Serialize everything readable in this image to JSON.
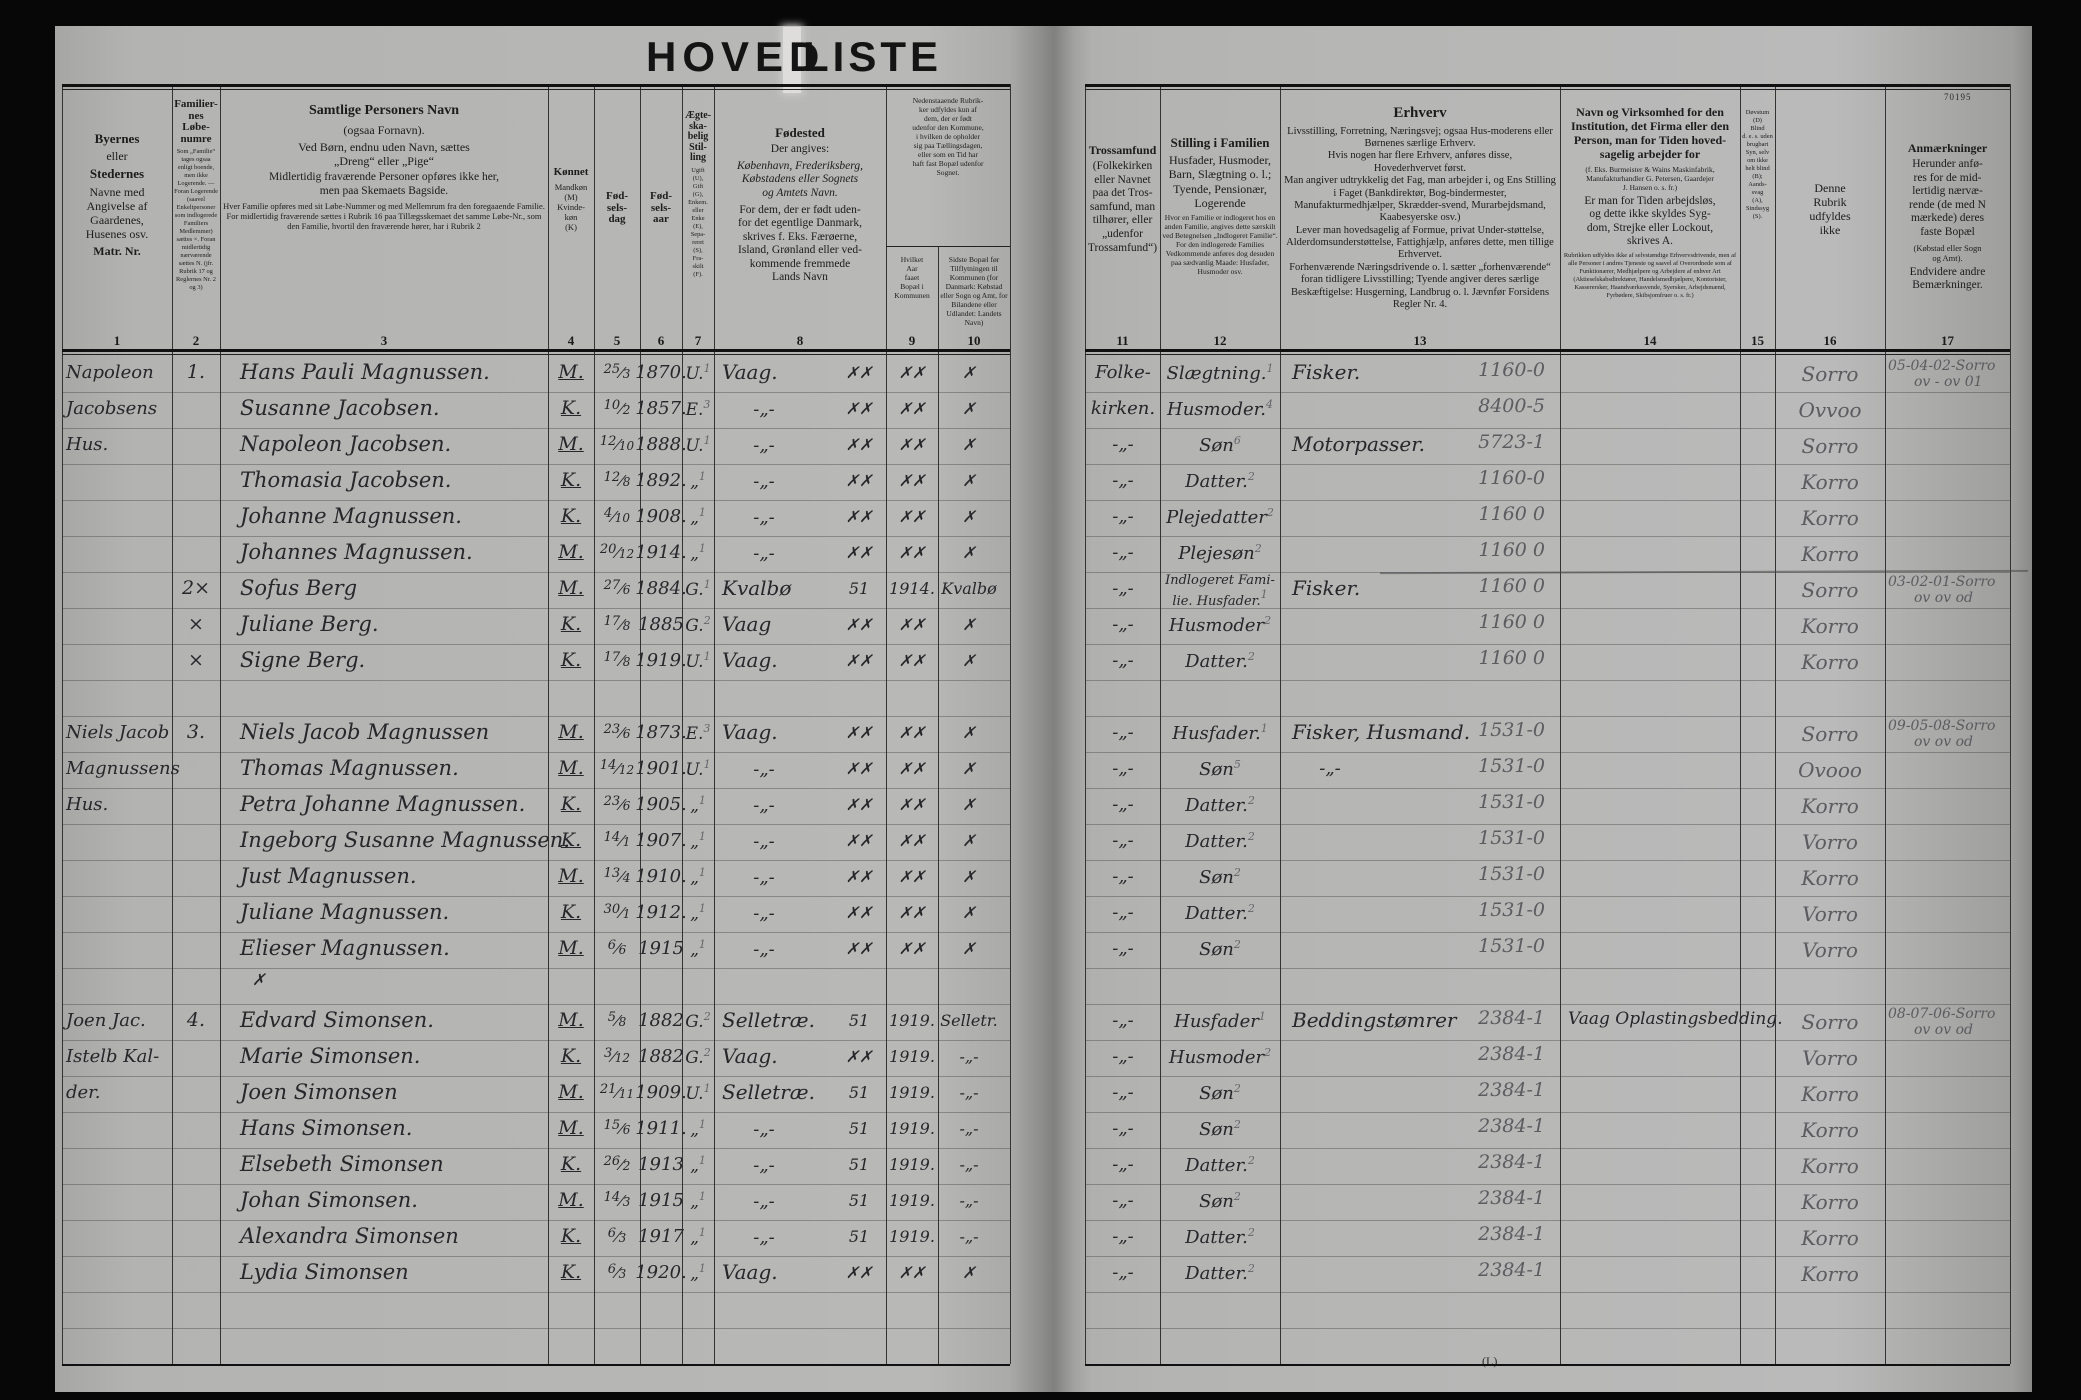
{
  "title": {
    "word1": "HOVED",
    "word2": "LISTE"
  },
  "meta": {
    "form_no": "70195",
    "bottom_mark": "(L)"
  },
  "palette": {
    "paper": "#b5b5b3",
    "ink": "#26262b",
    "pencil": "#5b5b60",
    "print": "#1c1c1c"
  },
  "columns": [
    {
      "id": "c1",
      "num": "1",
      "blocks": [
        [
          "b13",
          "Byernes"
        ],
        [
          "p12",
          "eller"
        ],
        [
          "b13",
          "Stedernes"
        ],
        [
          "p12",
          "Navne med\nAngivelse af\nGaardenes,\nHusenes osv."
        ],
        [
          "b12",
          "Matr. Nr."
        ]
      ]
    },
    {
      "id": "c2",
      "num": "2",
      "blocks": [
        [
          "b11",
          "Familier-\nnes\nLøbe-\nnumre"
        ],
        [
          "t6",
          "Som „Familie“ tages ogsaa enligt boende, men ikke Logerende. — Foran Logerende (saavel Enkeltpersoner som indlogerede Familiers Medlemmer) sættes ×. Foran midlertidig nærværende sættes N. (jfr. Rubrik 17 og Reglernes Nr. 2 og 3)"
        ]
      ]
    },
    {
      "id": "c3",
      "num": "3",
      "blocks": [
        [
          "b14",
          "Samtlige Personers Navn"
        ],
        [
          "p12",
          "(ogsaa Fornavn)."
        ],
        [
          "p12",
          "Ved Børn, endnu uden Navn, sættes\n„Dreng“ eller „Pige“"
        ],
        [
          "p11",
          "Midlertidig fraværende Personer opføres ikke her,\nmen paa Skemaets Bagside."
        ],
        [
          "t8",
          "Hver Familie opføres med sit Løbe-Nummer og med Mellemrum fra den foregaaende Familie. For midlertidig fraværende sættes i Rubrik 16 paa Tillægsskemaet det samme Løbe-Nr., som den Familie, hvortil den fraværende hører, har i Rubrik 2"
        ]
      ]
    },
    {
      "id": "c4",
      "num": "4",
      "blocks": [
        [
          "b11",
          "Kønnet"
        ],
        [
          "t8",
          "Mandkøn\n(M)\nKvinde-\nkøn\n(K)"
        ]
      ]
    },
    {
      "id": "c5",
      "num": "5",
      "blocks": [
        [
          "b11",
          "Fød-\nsels-\ndag"
        ]
      ]
    },
    {
      "id": "c6",
      "num": "6",
      "blocks": [
        [
          "b11",
          "Fød-\nsels-\naar"
        ]
      ]
    },
    {
      "id": "c7",
      "num": "7",
      "blocks": [
        [
          "b10",
          "Ægte-\nska-\nbelig\nStil-\nling"
        ],
        [
          "t6",
          "Ugift\n(U),\nGift\n(G),\nEnkem.\neller\nEnke\n(E),\nSepa-\nreret\n(S),\nFra-\nskilt\n(F)."
        ]
      ]
    },
    {
      "id": "c8",
      "num": "8",
      "blocks": [
        [
          "b13",
          "Fødested"
        ],
        [
          "p11",
          "Der angives:"
        ],
        [
          "i11",
          "København, Frederiksberg,\nKøbstadens eller Sognets\nog Amtets Navn."
        ],
        [
          "p11",
          "For dem, der er født uden-\nfor det egentlige Danmark,\nskrives f. Eks. Færøerne,\nIsland, Grønland eller ved-\nkommende fremmede\nLands Navn"
        ]
      ]
    },
    {
      "id": "c9",
      "num": "9",
      "blocks": [
        [
          "t7",
          "Hvilket\nAar\nfaaet\nBopæl i\nKommunen"
        ]
      ]
    },
    {
      "id": "c10",
      "num": "10",
      "blocks": [
        [
          "t7",
          "Sidste Bopæl før Tilflytningen til Kommunen (for Danmark: Købstad eller Sogn og Amt, for Bilandene eller Udlandet: Landets Navn)"
        ]
      ]
    },
    {
      "id": "c11",
      "num": "11",
      "blocks": [
        [
          "b12",
          "Trossamfund"
        ],
        [
          "p11",
          "(Folkekirken\neller Navnet\npaa det Tros-\nsamfund, man\ntilhører, eller\n„udenfor\nTrossamfund“)"
        ]
      ]
    },
    {
      "id": "c12",
      "num": "12",
      "blocks": [
        [
          "b13",
          "Stilling i Familien"
        ],
        [
          "p12",
          "Husfader, Husmoder,\nBarn, Slægtning o. l.;\nTyende, Pensionær,\nLogerende"
        ],
        [
          "t7",
          "Hvor en Familie er indlogeret hos en anden Familie, angives dette særskilt ved Betegnelsen „Indlogeret Familie“. For den indlogerede Families Vedkommende anføres dog desuden paa sædvanlig Maade: Husfader, Husmoder osv."
        ]
      ]
    },
    {
      "id": "c13",
      "num": "13",
      "blocks": [
        [
          "b15",
          "Erhverv"
        ],
        [
          "p10",
          "Livsstilling, Forretning, Næringsvej; ogsaa Hus-moderens eller Børnenes særlige Erhverv.\nHvis nogen har flere Erhverv, anføres disse,\nHovederhvervet først.\nMan angiver udtrykkelig det Fag, man arbejder i, og Ens Stilling i Faget (Bankdirektør, Bog-bindermester, Manufakturmedhjælper, Skrædder-svend, Murarbejdsmand, Kaabesyerske osv.)\nLever man hovedsagelig af Formue, privat Under-støttelse, Alderdomsunderstøttelse, Fattighjælp, anføres dette, men tillige Erhvervet.\nForhenværende Næringsdrivende o. l. sætter „forhenværende“ foran tidligere Livsstilling; Tyende angiver deres særlige Beskæftigelse: Husgerning, Landbrug o. l.  Jævnfør Forsidens Regler Nr. 4."
        ]
      ]
    },
    {
      "id": "c14",
      "num": "14",
      "blocks": [
        [
          "b12",
          "Navn og Virksomhed for den\nInstitution, det Firma eller den\nPerson, man for Tiden hoved-\nsagelig arbejder for"
        ],
        [
          "t7",
          "(f. Eks. Burmeister & Wains Maskinfabrik,\nManufakturhandler G. Petersen, Gaardejer\nJ. Hansen o. s. fr.)"
        ],
        [
          "p11",
          "Er man for Tiden arbejdsløs,\nog dette ikke skyldes Syg-\ndom, Strejke eller Lockout,\nskrives A."
        ],
        [
          "t6",
          "Rubrikken udfyldes ikke af selvstændige Erhvervsdrivende, men af alle Personer i andres Tjeneste og saavel af Overordnede som af Funktionærer, Medhjælpere og Arbejdere af enhver Art (Aktieselskabsdirektører, Handelsmedhjælpere, Kontorister, Kasserersker, Haandværkssvende, Syersker, Arbejdsmænd, Fyrbødere, Skibsjomfruer o. s. fr.)"
        ]
      ]
    },
    {
      "id": "c15",
      "num": "15",
      "blocks": [
        [
          "t6",
          "Døvstum\n(D)\nBlind\nd. e. s. uden\nbrugbart\nSyn, selv\nom ikke\nhelt blind\n(B);\nAands-\nsvag\n(A),\nSindssyg\n(S)."
        ]
      ]
    },
    {
      "id": "c16",
      "num": "16",
      "blocks": [
        [
          "p12",
          "Denne\nRubrik\nudfyldes\nikke"
        ]
      ]
    },
    {
      "id": "c17",
      "num": "17",
      "blocks": [
        [
          "b12",
          "Anmærkninger"
        ],
        [
          "p11",
          "Herunder anfø-\nres for de mid-\nlertidig nærvæ-\nrende (de med N\nmærkede) deres\nfaste Bopæl"
        ],
        [
          "t8",
          "(Købstad eller Sogn\nog Amt)."
        ],
        [
          "p11",
          "Endvidere andre\nBemærkninger."
        ]
      ]
    }
  ],
  "mid_block_9_10": "Nedenstaaende Rubrik-\nker udfyldes kun af\ndem, der er født\nudenfor den Kommune,\ni hvilken de opholder\nsig paa Tællingsdagen,\neller som en Tid har\nhaft fast Bopæl udenfor\nSognet.",
  "stray_mark": "✗",
  "families": [
    {
      "margin": [
        "Napoleon",
        "Jacobsens",
        "Hus."
      ],
      "gap_before": false,
      "rows": [
        {
          "c2": "1.",
          "name": "Hans Pauli Magnussen.",
          "sex": "M.",
          "day": "25/3",
          "yr": "1870.",
          "st": "U.",
          "sts": "1",
          "bp": "Vaag.",
          "bp2": "✗✗",
          "c9": "✗✗",
          "c10": "✗",
          "tro": "Folke-",
          "sti": "Slægtning.",
          "stn": "1",
          "erh": "Fisker.",
          "code": "1160-0",
          "c16": "Sorro",
          "c17": [
            "05-04-02-Sorro",
            "ov - ov 01"
          ]
        },
        {
          "c2": "",
          "name": "Susanne Jacobsen.",
          "sex": "K.",
          "day": "10/2",
          "yr": "1857.",
          "st": "E.",
          "sts": "3",
          "bp": "-„-",
          "bp2": "✗✗",
          "c9": "✗✗",
          "c10": "✗",
          "tro": "kirken.",
          "sti": "Husmoder.",
          "stn": "4",
          "erh": "",
          "code": "8400-5",
          "c16": "Ovvoo",
          "c17": []
        },
        {
          "c2": "",
          "name": "Napoleon Jacobsen.",
          "sex": "M.",
          "day": "12/10",
          "yr": "1888.",
          "st": "U.",
          "sts": "1",
          "bp": "-„-",
          "bp2": "✗✗",
          "c9": "✗✗",
          "c10": "✗",
          "tro": "-„-",
          "sti": "Søn",
          "stn": "6",
          "erh": "Motorpasser.",
          "code": "5723-1",
          "c16": "Sorro",
          "c17": []
        },
        {
          "c2": "",
          "name": "Thomasia Jacobsen.",
          "sex": "K.",
          "day": "12/8",
          "yr": "1892.",
          "st": "„",
          "sts": "1",
          "bp": "-„-",
          "bp2": "✗✗",
          "c9": "✗✗",
          "c10": "✗",
          "tro": "-„-",
          "sti": "Datter.",
          "stn": "2",
          "erh": "",
          "code": "1160-0",
          "c16": "Korro",
          "c17": []
        },
        {
          "c2": "",
          "name": "Johanne Magnussen.",
          "sex": "K.",
          "day": "4/10",
          "yr": "1908.",
          "st": "„",
          "sts": "1",
          "bp": "-„-",
          "bp2": "✗✗",
          "c9": "✗✗",
          "c10": "✗",
          "tro": "-„-",
          "sti": "Plejedatter",
          "stn": "2",
          "erh": "",
          "code": "1160 0",
          "c16": "Korro",
          "c17": []
        },
        {
          "c2": "",
          "name": "Johannes Magnussen.",
          "sex": "M.",
          "day": "20/12",
          "yr": "1914.",
          "st": "„",
          "sts": "1",
          "bp": "-„-",
          "bp2": "✗✗",
          "c9": "✗✗",
          "c10": "✗",
          "tro": "-„-",
          "sti": "Plejesøn",
          "stn": "2",
          "erh": "",
          "code": "1160 0",
          "c16": "Korro",
          "c17": []
        }
      ]
    },
    {
      "margin": [],
      "gap_before": false,
      "rows": [
        {
          "c2": "2×",
          "name": "Sofus Berg",
          "sex": "M.",
          "day": "27/6",
          "yr": "1884.",
          "st": "G.",
          "sts": "1",
          "bp": "Kvalbø",
          "bp2": "51",
          "c9": "1914.",
          "c10": "Kvalbø",
          "tro": "-„-",
          "sti": "Indlogeret Fami-\nlie. Husfader.",
          "stn": "1",
          "erh": "Fisker.",
          "code": "1160 0",
          "c16": "Sorro",
          "c17": [
            "03-02-01-Sorro",
            "ov ov od"
          ]
        },
        {
          "c2": "×",
          "name": "Juliane Berg.",
          "sex": "K.",
          "day": "17/8",
          "yr": "1885",
          "st": "G.",
          "sts": "2",
          "bp": "Vaag",
          "bp2": "✗✗",
          "c9": "✗✗",
          "c10": "✗",
          "tro": "-„-",
          "sti": "Husmoder",
          "stn": "2",
          "erh": "",
          "code": "1160 0",
          "c16": "Korro",
          "c17": []
        },
        {
          "c2": "×",
          "name": "Signe Berg.",
          "sex": "K.",
          "day": "17/8",
          "yr": "1919.",
          "st": "U.",
          "sts": "1",
          "bp": "Vaag.",
          "bp2": "✗✗",
          "c9": "✗✗",
          "c10": "✗",
          "tro": "-„-",
          "sti": "Datter.",
          "stn": "2",
          "erh": "",
          "code": "1160 0",
          "c16": "Korro",
          "c17": []
        }
      ]
    },
    {
      "margin": [
        "Niels Jacob",
        "Magnussens",
        "Hus."
      ],
      "gap_before": true,
      "rows": [
        {
          "c2": "3.",
          "name": "Niels Jacob Magnussen",
          "sex": "M.",
          "day": "23/6",
          "yr": "1873.",
          "st": "E.",
          "sts": "3",
          "bp": "Vaag.",
          "bp2": "✗✗",
          "c9": "✗✗",
          "c10": "✗",
          "tro": "-„-",
          "sti": "Husfader.",
          "stn": "1",
          "erh": "Fisker, Husmand.",
          "code": "1531-0",
          "c16": "Sorro",
          "c17": [
            "09-05-08-Sorro",
            "ov ov od"
          ]
        },
        {
          "c2": "",
          "name": "Thomas Magnussen.",
          "sex": "M.",
          "day": "14/12",
          "yr": "1901.",
          "st": "U.",
          "sts": "1",
          "bp": "-„-",
          "bp2": "✗✗",
          "c9": "✗✗",
          "c10": "✗",
          "tro": "-„-",
          "sti": "Søn",
          "stn": "5",
          "erh": "-„-",
          "code": "1531-0",
          "c16": "Ovooo",
          "c17": []
        },
        {
          "c2": "",
          "name": "Petra Johanne Magnussen.",
          "sex": "K.",
          "day": "23/6",
          "yr": "1905.",
          "st": "„",
          "sts": "1",
          "bp": "-„-",
          "bp2": "✗✗",
          "c9": "✗✗",
          "c10": "✗",
          "tro": "-„-",
          "sti": "Datter.",
          "stn": "2",
          "erh": "",
          "code": "1531-0",
          "c16": "Korro",
          "c17": []
        },
        {
          "c2": "",
          "name": "Ingeborg Susanne Magnussen.",
          "sex": "K.",
          "day": "14/1",
          "yr": "1907.",
          "st": "„",
          "sts": "1",
          "bp": "-„-",
          "bp2": "✗✗",
          "c9": "✗✗",
          "c10": "✗",
          "tro": "-„-",
          "sti": "Datter.",
          "stn": "2",
          "erh": "",
          "code": "1531-0",
          "c16": "Vorro",
          "c17": []
        },
        {
          "c2": "",
          "name": "Just Magnussen.",
          "sex": "M.",
          "day": "13/4",
          "yr": "1910.",
          "st": "„",
          "sts": "1",
          "bp": "-„-",
          "bp2": "✗✗",
          "c9": "✗✗",
          "c10": "✗",
          "tro": "-„-",
          "sti": "Søn",
          "stn": "2",
          "erh": "",
          "code": "1531-0",
          "c16": "Korro",
          "c17": []
        },
        {
          "c2": "",
          "name": "Juliane Magnussen.",
          "sex": "K.",
          "day": "30/1",
          "yr": "1912.",
          "st": "„",
          "sts": "1",
          "bp": "-„-",
          "bp2": "✗✗",
          "c9": "✗✗",
          "c10": "✗",
          "tro": "-„-",
          "sti": "Datter.",
          "stn": "2",
          "erh": "",
          "code": "1531-0",
          "c16": "Vorro",
          "c17": []
        },
        {
          "c2": "",
          "name": "Elieser Magnussen.",
          "sex": "M.",
          "day": "6/6",
          "yr": "1915",
          "st": "„",
          "sts": "1",
          "bp": "-„-",
          "bp2": "✗✗",
          "c9": "✗✗",
          "c10": "✗",
          "tro": "-„-",
          "sti": "Søn",
          "stn": "2",
          "erh": "",
          "code": "1531-0",
          "c16": "Vorro",
          "c17": []
        }
      ]
    },
    {
      "margin": [
        "Joen Jac.",
        "Istelb Kal-",
        "der."
      ],
      "gap_before": true,
      "rows": [
        {
          "c2": "4.",
          "name": "Edvard Simonsen.",
          "sex": "M.",
          "day": "5/8",
          "yr": "1882",
          "st": "G.",
          "sts": "2",
          "bp": "Selletræ.",
          "bp2": "51",
          "c9": "1919.",
          "c10": "Selletr.",
          "tro": "-„-",
          "sti": "Husfader",
          "stn": "1",
          "erh": "Beddingstømrer",
          "code": "2384-1",
          "firm": "Vaag Oplastingsbedding.",
          "c16": "Sorro",
          "c17": [
            "08-07-06-Sorro",
            "ov ov od"
          ]
        },
        {
          "c2": "",
          "name": "Marie Simonsen.",
          "sex": "K.",
          "day": "3/12",
          "yr": "1882",
          "st": "G.",
          "sts": "2",
          "bp": "Vaag.",
          "bp2": "✗✗",
          "c9": "1919.",
          "c10": "-„-",
          "tro": "-„-",
          "sti": "Husmoder",
          "stn": "2",
          "erh": "",
          "code": "2384-1",
          "c16": "Vorro",
          "c17": []
        },
        {
          "c2": "",
          "name": "Joen Simonsen",
          "sex": "M.",
          "day": "21/11",
          "yr": "1909.",
          "st": "U.",
          "sts": "1",
          "bp": "Selletræ.",
          "bp2": "51",
          "c9": "1919.",
          "c10": "-„-",
          "tro": "-„-",
          "sti": "Søn",
          "stn": "2",
          "erh": "",
          "code": "2384-1",
          "c16": "Korro",
          "c17": []
        },
        {
          "c2": "",
          "name": "Hans Simonsen.",
          "sex": "M.",
          "day": "15/6",
          "yr": "1911.",
          "st": "„",
          "sts": "1",
          "bp": "-„-",
          "bp2": "51",
          "c9": "1919.",
          "c10": "-„-",
          "tro": "-„-",
          "sti": "Søn",
          "stn": "2",
          "erh": "",
          "code": "2384-1",
          "c16": "Korro",
          "c17": []
        },
        {
          "c2": "",
          "name": "Elsebeth Simonsen",
          "sex": "K.",
          "day": "26/2",
          "yr": "1913",
          "st": "„",
          "sts": "1",
          "bp": "-„-",
          "bp2": "51",
          "c9": "1919.",
          "c10": "-„-",
          "tro": "-„-",
          "sti": "Datter.",
          "stn": "2",
          "erh": "",
          "code": "2384-1",
          "c16": "Korro",
          "c17": []
        },
        {
          "c2": "",
          "name": "Johan Simonsen.",
          "sex": "M.",
          "day": "14/3",
          "yr": "1915",
          "st": "„",
          "sts": "1",
          "bp": "-„-",
          "bp2": "51",
          "c9": "1919.",
          "c10": "-„-",
          "tro": "-„-",
          "sti": "Søn",
          "stn": "2",
          "erh": "",
          "code": "2384-1",
          "c16": "Korro",
          "c17": []
        },
        {
          "c2": "",
          "name": "Alexandra Simonsen",
          "sex": "K.",
          "day": "6/3",
          "yr": "1917",
          "st": "„",
          "sts": "1",
          "bp": "-„-",
          "bp2": "51",
          "c9": "1919.",
          "c10": "-„-",
          "tro": "-„-",
          "sti": "Datter.",
          "stn": "2",
          "erh": "",
          "code": "2384-1",
          "c16": "Korro",
          "c17": []
        },
        {
          "c2": "",
          "name": "Lydia Simonsen",
          "sex": "K.",
          "day": "6/3",
          "yr": "1920.",
          "st": "„",
          "sts": "1",
          "bp": "Vaag.",
          "bp2": "✗✗",
          "c9": "✗✗",
          "c10": "✗",
          "tro": "-„-",
          "sti": "Datter.",
          "stn": "2",
          "erh": "",
          "code": "2384-1",
          "c16": "Korro",
          "c17": []
        }
      ]
    }
  ]
}
